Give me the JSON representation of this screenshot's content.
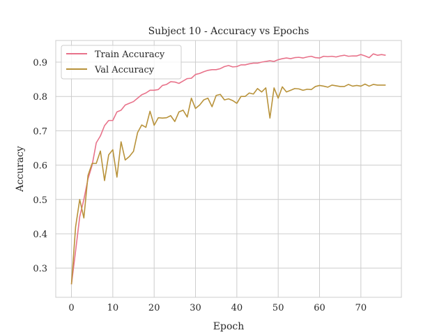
{
  "chart_data": {
    "type": "line",
    "title": "Subject 10 - Accuracy vs Epochs",
    "xlabel": "Epoch",
    "ylabel": "Accuracy",
    "xlim": [
      -3.8,
      79.8
    ],
    "ylim": [
      0.215,
      0.963
    ],
    "xticks": [
      0,
      10,
      20,
      30,
      40,
      50,
      60,
      70
    ],
    "yticks": [
      0.3,
      0.4,
      0.5,
      0.6,
      0.7,
      0.8,
      0.9
    ],
    "ytick_labels": [
      "0.3",
      "0.4",
      "0.5",
      "0.6",
      "0.7",
      "0.8",
      "0.9"
    ],
    "grid": true,
    "legend_position": "top-left",
    "series": [
      {
        "name": "Train Accuracy",
        "color": "#e8728a",
        "values": [
          0.253,
          0.35,
          0.45,
          0.5,
          0.56,
          0.6,
          0.665,
          0.685,
          0.715,
          0.73,
          0.73,
          0.755,
          0.76,
          0.775,
          0.78,
          0.785,
          0.795,
          0.805,
          0.81,
          0.818,
          0.818,
          0.82,
          0.832,
          0.835,
          0.843,
          0.842,
          0.838,
          0.845,
          0.852,
          0.853,
          0.864,
          0.867,
          0.872,
          0.876,
          0.878,
          0.878,
          0.881,
          0.887,
          0.89,
          0.886,
          0.887,
          0.892,
          0.892,
          0.895,
          0.897,
          0.897,
          0.9,
          0.902,
          0.904,
          0.902,
          0.907,
          0.91,
          0.912,
          0.91,
          0.913,
          0.914,
          0.912,
          0.915,
          0.917,
          0.913,
          0.912,
          0.917,
          0.916,
          0.917,
          0.915,
          0.918,
          0.92,
          0.917,
          0.918,
          0.918,
          0.922,
          0.918,
          0.913,
          0.924,
          0.92,
          0.922,
          0.92
        ]
      },
      {
        "name": "Val Accuracy",
        "color": "#b8923a",
        "values": [
          0.253,
          0.42,
          0.5,
          0.446,
          0.57,
          0.605,
          0.605,
          0.641,
          0.555,
          0.63,
          0.645,
          0.565,
          0.668,
          0.615,
          0.625,
          0.64,
          0.695,
          0.717,
          0.71,
          0.757,
          0.716,
          0.738,
          0.737,
          0.738,
          0.744,
          0.727,
          0.755,
          0.76,
          0.74,
          0.795,
          0.765,
          0.775,
          0.79,
          0.795,
          0.77,
          0.803,
          0.806,
          0.79,
          0.793,
          0.788,
          0.78,
          0.8,
          0.8,
          0.81,
          0.807,
          0.823,
          0.813,
          0.825,
          0.737,
          0.825,
          0.795,
          0.828,
          0.813,
          0.818,
          0.823,
          0.822,
          0.818,
          0.821,
          0.82,
          0.829,
          0.832,
          0.83,
          0.827,
          0.833,
          0.831,
          0.829,
          0.829,
          0.835,
          0.83,
          0.832,
          0.83,
          0.836,
          0.83,
          0.835,
          0.833,
          0.833,
          0.833
        ]
      }
    ]
  }
}
